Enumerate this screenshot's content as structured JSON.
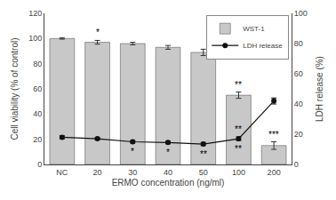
{
  "chart_data": {
    "type": "bar",
    "xlabel": "ERMO concentration (ng/ml)",
    "ylabel": "Cell viability (% of control)",
    "y2label": "LDH release (%)",
    "categories": [
      "NC",
      "20",
      "30",
      "40",
      "50",
      "100",
      "200"
    ],
    "series": [
      {
        "name": "WST-1",
        "type": "bar",
        "color": "#c8c8c8",
        "values": [
          100,
          97,
          96,
          93,
          89,
          55,
          15
        ],
        "errors": [
          0.5,
          1.5,
          1.0,
          1.5,
          2.5,
          2.5,
          3.0
        ],
        "labels_above": [
          null,
          "*",
          null,
          null,
          null,
          "**",
          "***"
        ]
      },
      {
        "name": "LDH release",
        "type": "line",
        "axis": "y2",
        "color": "#111111",
        "marker": "circle",
        "line_style": "solid",
        "values": [
          18,
          17,
          15,
          14.5,
          13.5,
          17,
          42
        ],
        "errors": [
          1.0,
          0.8,
          0.8,
          0.8,
          1.0,
          1.2,
          2.0
        ],
        "labels_above": [
          null,
          null,
          null,
          null,
          null,
          "**",
          null
        ],
        "labels_below": [
          null,
          null,
          "*",
          "*",
          "**",
          "**",
          null
        ]
      }
    ],
    "ylim": [
      0,
      120
    ],
    "yticks": [
      0,
      20,
      40,
      60,
      80,
      100,
      120
    ],
    "y2lim": [
      0,
      100
    ],
    "y2ticks": [
      0,
      20,
      40,
      60,
      80,
      100
    ],
    "grid": false,
    "legend": "upper right"
  }
}
